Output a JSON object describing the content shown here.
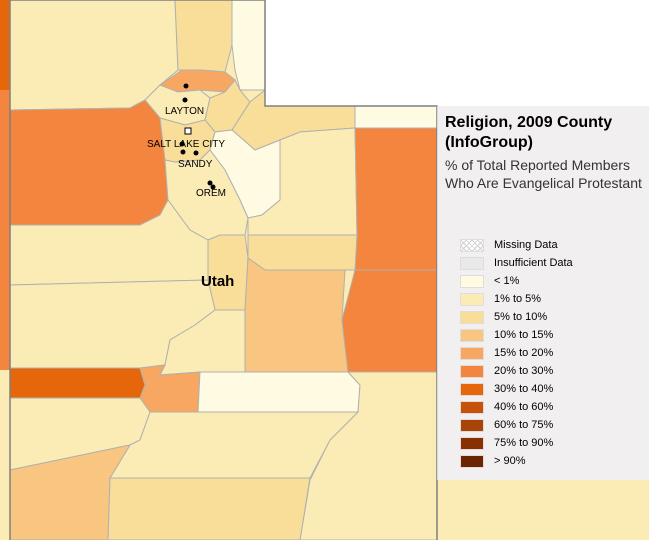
{
  "legend": {
    "title": "Religion, 2009 County (InfoGroup)",
    "subtitle": "% of Total Reported Members Who Are Evangelical Protestant",
    "items": [
      {
        "label": "Missing Data",
        "color": "#ffffff",
        "pattern": "hatch"
      },
      {
        "label": "Insufficient Data",
        "color": "#e9e9e9"
      },
      {
        "label": "< 1%",
        "color": "#fffbe3"
      },
      {
        "label": "1% to 5%",
        "color": "#fbecb5"
      },
      {
        "label": "5% to 10%",
        "color": "#f9de9a"
      },
      {
        "label": "10% to 15%",
        "color": "#f8c680"
      },
      {
        "label": "15% to 20%",
        "color": "#f7a761"
      },
      {
        "label": "20% to 30%",
        "color": "#f3853f"
      },
      {
        "label": "30% to 40%",
        "color": "#e5660b"
      },
      {
        "label": "40% to 60%",
        "color": "#c75109"
      },
      {
        "label": "60% to 75%",
        "color": "#a84405"
      },
      {
        "label": "75% to 90%",
        "color": "#883000"
      },
      {
        "label": "> 90%",
        "color": "#6a2500"
      }
    ]
  },
  "map": {
    "state_label": "Utah",
    "cities": [
      "LAYTON",
      "SALT LAKE CITY",
      "SANDY",
      "OREM"
    ]
  }
}
